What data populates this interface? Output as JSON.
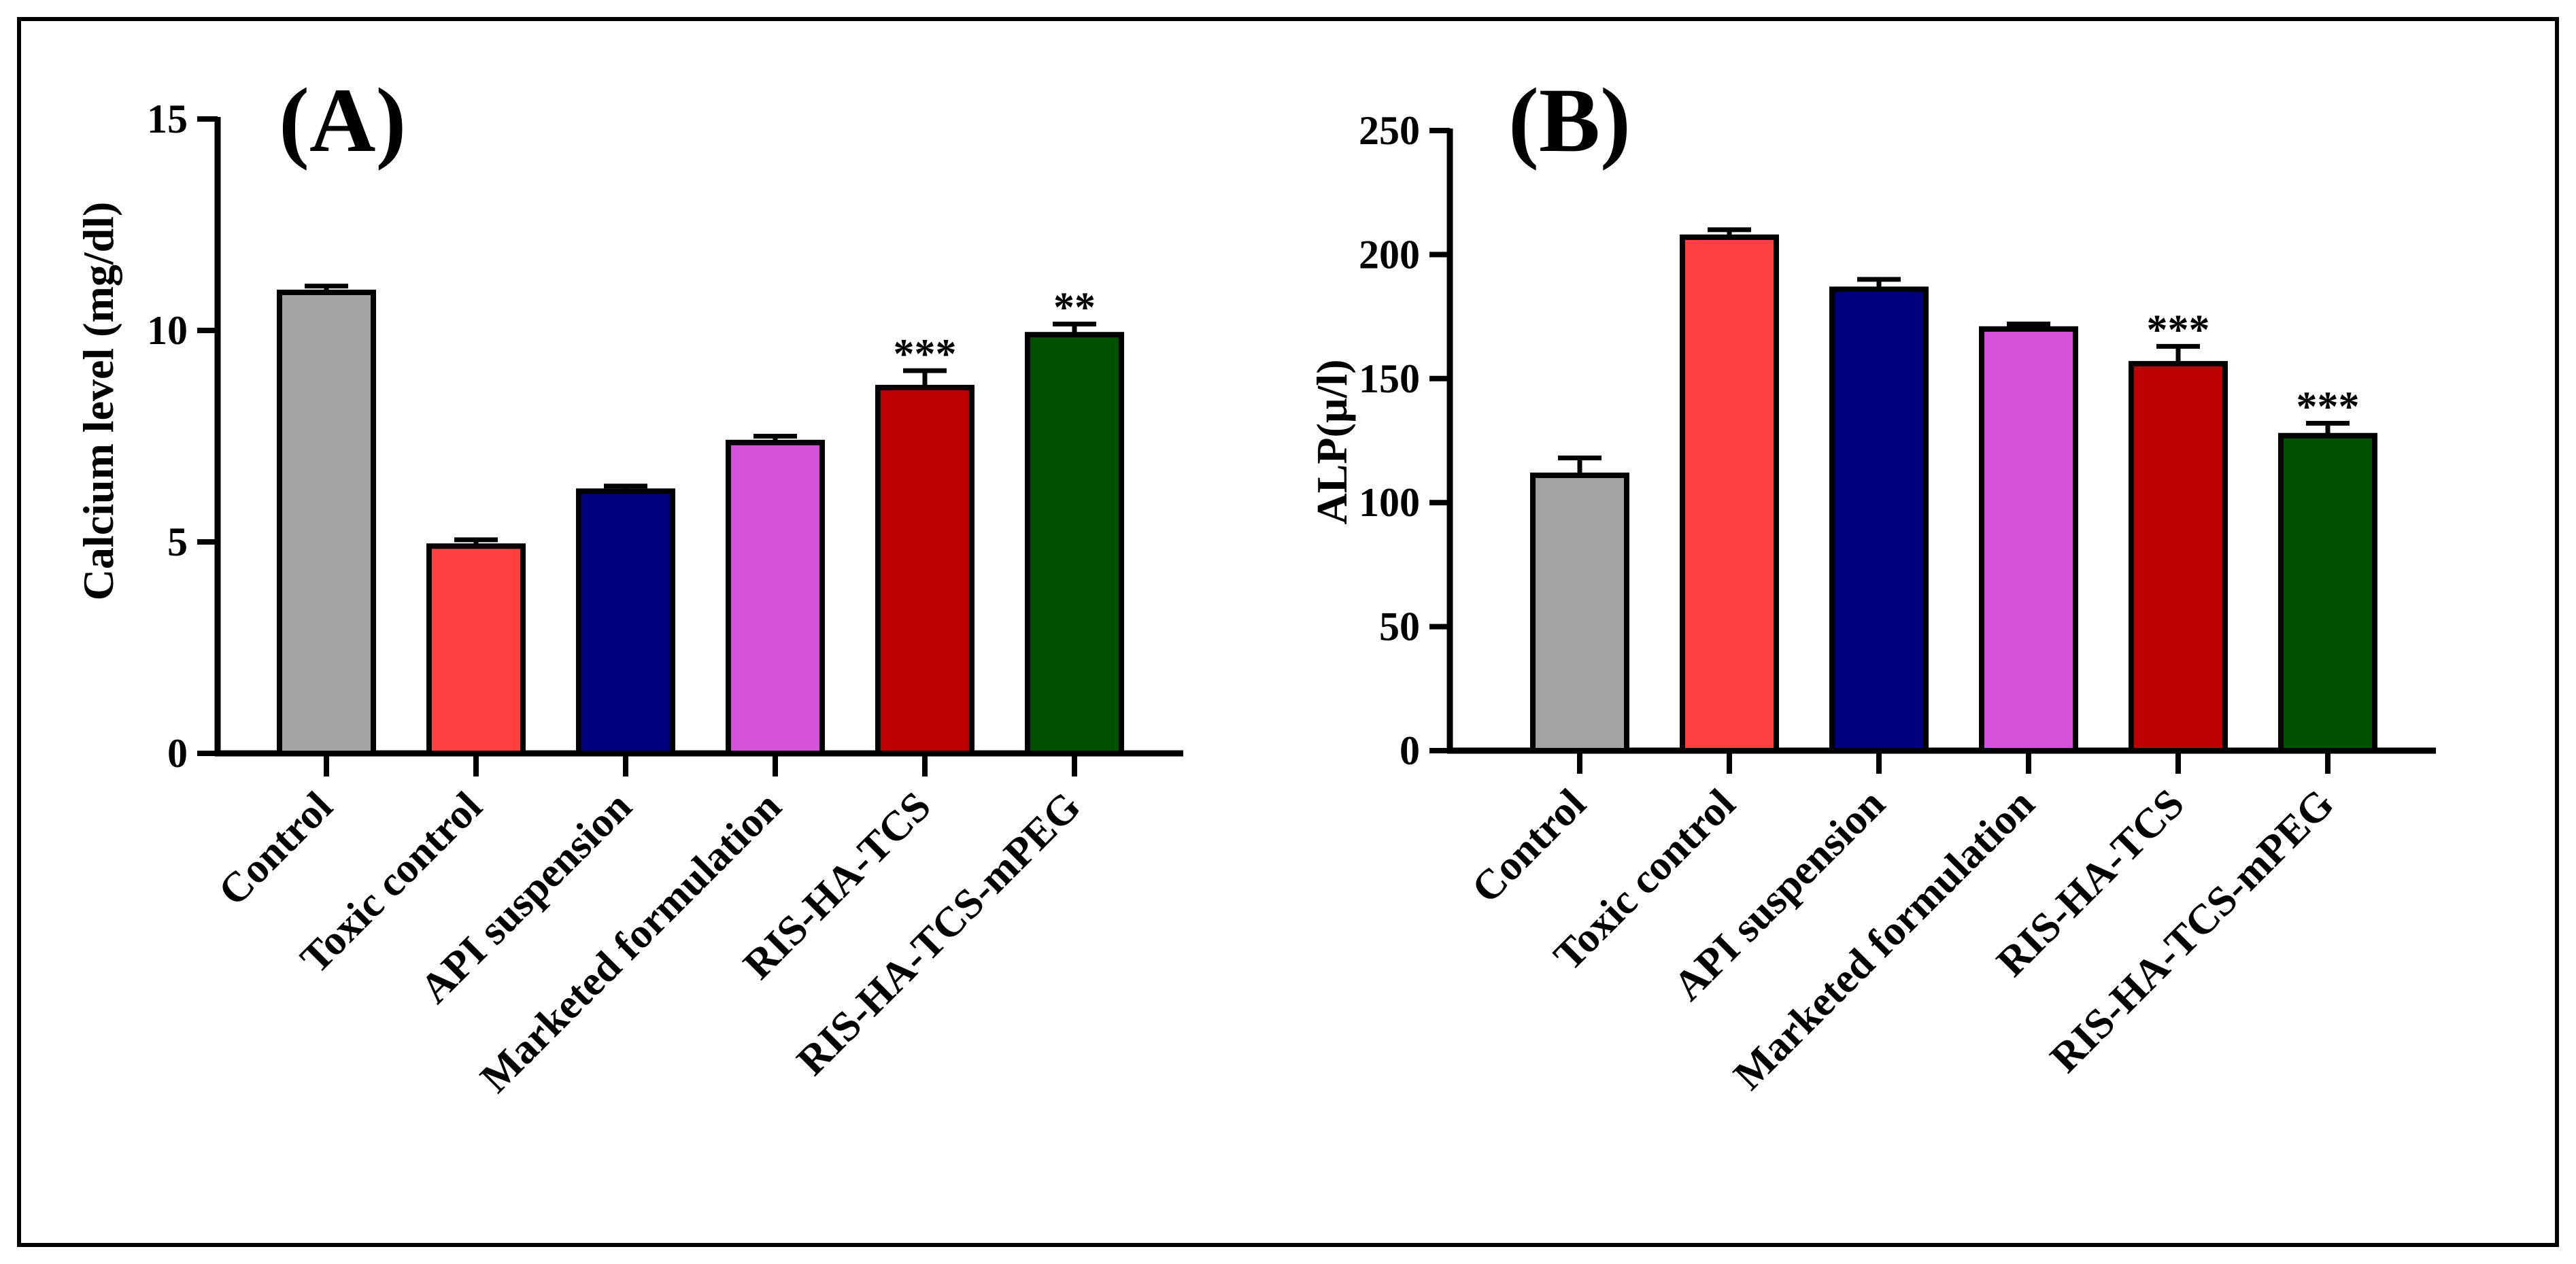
{
  "chart_data": [
    {
      "type": "bar",
      "panel_label": "(A)",
      "title": "",
      "xlabel": "",
      "ylabel": "Calcium level (mg/dl)",
      "ylim": [
        0,
        15
      ],
      "yticks": [
        0,
        5,
        10,
        15
      ],
      "ytick_labels": [
        "0",
        "5",
        "10",
        "15"
      ],
      "grid": false,
      "categories": [
        "Control",
        "Toxic control",
        "API suspension",
        "Marketed formulation",
        "RIS-HA-TCS",
        "RIS-HA-TCS-mPEG"
      ],
      "values": [
        10.9,
        4.9,
        6.2,
        7.35,
        8.65,
        9.9
      ],
      "errors": [
        0.15,
        0.15,
        0.12,
        0.15,
        0.4,
        0.25
      ],
      "colors": [
        "#a3a3a6",
        "#ff4040",
        "#00007e",
        "#d452da",
        "#bf0000",
        "#005200"
      ],
      "annotations": [
        "",
        "",
        "",
        "",
        "***",
        "**"
      ]
    },
    {
      "type": "bar",
      "panel_label": "(B)",
      "title": "",
      "xlabel": "",
      "ylabel": "ALP(µ/l)",
      "ylim": [
        0,
        250
      ],
      "yticks": [
        0,
        50,
        100,
        150,
        200,
        250
      ],
      "ytick_labels": [
        "0",
        "50",
        "100",
        "150",
        "200",
        "250"
      ],
      "grid": false,
      "categories": [
        "Control",
        "Toxic control",
        "API suspension",
        "Marketed formulation",
        "RIS-HA-TCS",
        "RIS-HA-TCS-mPEG"
      ],
      "values": [
        111,
        207,
        186,
        170,
        156,
        127
      ],
      "errors": [
        7,
        3,
        4,
        2,
        7,
        5
      ],
      "colors": [
        "#a3a3a6",
        "#ff4040",
        "#00007e",
        "#d452da",
        "#bf0000",
        "#005200"
      ],
      "annotations": [
        "",
        "",
        "",
        "",
        "***",
        "***"
      ]
    }
  ]
}
